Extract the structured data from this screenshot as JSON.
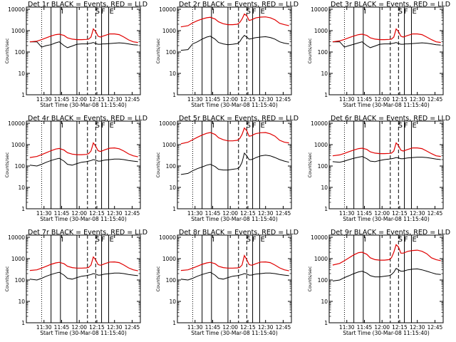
{
  "xlabel": "Start Time (30-Mar-08 11:15:40)",
  "ylabel": "Counts/sec",
  "x_tick_labels": [
    "11:30",
    "11:45",
    "12:00",
    "12:15",
    "12:30",
    "12:45"
  ],
  "y_tick_labels": [
    "10000",
    "1000",
    "100",
    "10",
    "1"
  ],
  "legend_text": "BLACK = Events, RED = LLD",
  "series_colors": {
    "events": "#000000",
    "lld": "#e00000"
  },
  "marker_letters": [
    "I",
    "S",
    "F",
    "E"
  ],
  "chart_data": [
    {
      "type": "line",
      "title": "Det 1r BLACK = Events, RED = LLD",
      "x": [
        "11:18",
        "11:24",
        "11:28",
        "11:32",
        "11:36",
        "11:40",
        "11:43",
        "11:47",
        "11:50",
        "11:54",
        "11:58",
        "12:02",
        "12:06",
        "12:08",
        "12:10",
        "12:12",
        "12:14",
        "12:16",
        "12:18",
        "12:20",
        "12:22",
        "12:26",
        "12:30",
        "12:34",
        "12:38",
        "12:42",
        "12:46",
        "12:50"
      ],
      "series": [
        {
          "name": "Events",
          "values": [
            300,
            300,
            170,
            200,
            220,
            270,
            300,
            200,
            160,
            190,
            230,
            240,
            240,
            250,
            260,
            280,
            250,
            230,
            230,
            240,
            240,
            250,
            260,
            270,
            260,
            240,
            220,
            210
          ]
        },
        {
          "name": "LLD",
          "values": [
            300,
            320,
            380,
            460,
            560,
            650,
            680,
            600,
            460,
            400,
            380,
            380,
            390,
            400,
            500,
            1200,
            900,
            550,
            500,
            550,
            600,
            700,
            700,
            650,
            500,
            370,
            300,
            280
          ]
        }
      ],
      "xlabel": "Start Time (30-Mar-08 11:15:40)",
      "ylabel": "Counts/sec",
      "ylim": [
        1,
        10000
      ]
    },
    {
      "type": "line",
      "title": "Det 2r BLACK = Events, RED = LLD",
      "x": [
        "11:18",
        "11:24",
        "11:28",
        "11:32",
        "11:36",
        "11:40",
        "11:43",
        "11:47",
        "11:50",
        "11:54",
        "11:58",
        "12:02",
        "12:06",
        "12:08",
        "12:10",
        "12:12",
        "12:14",
        "12:16",
        "12:18",
        "12:20",
        "12:22",
        "12:26",
        "12:30",
        "12:34",
        "12:38",
        "12:42",
        "12:46",
        "12:50"
      ],
      "series": [
        {
          "name": "Events",
          "values": [
            120,
            130,
            240,
            300,
            400,
            500,
            550,
            400,
            280,
            240,
            220,
            230,
            250,
            300,
            450,
            600,
            500,
            400,
            420,
            450,
            470,
            500,
            520,
            480,
            400,
            300,
            260,
            240
          ]
        },
        {
          "name": "LLD",
          "values": [
            1500,
            1700,
            2300,
            2900,
            3500,
            4000,
            4200,
            3500,
            2600,
            2100,
            1900,
            1900,
            2000,
            2400,
            3500,
            6000,
            5000,
            3000,
            3200,
            3600,
            4000,
            4300,
            4400,
            4000,
            3200,
            2200,
            1900,
            1700
          ]
        }
      ],
      "xlabel": "Start Time (30-Mar-08 11:15:40)",
      "ylabel": "Counts/sec",
      "ylim": [
        1,
        10000
      ]
    },
    {
      "type": "line",
      "title": "Det 3r BLACK = Events, RED = LLD",
      "x": [
        "11:18",
        "11:24",
        "11:28",
        "11:32",
        "11:36",
        "11:40",
        "11:43",
        "11:47",
        "11:50",
        "11:54",
        "11:58",
        "12:02",
        "12:06",
        "12:08",
        "12:10",
        "12:12",
        "12:14",
        "12:16",
        "12:18",
        "12:20",
        "12:22",
        "12:26",
        "12:30",
        "12:34",
        "12:38",
        "12:42",
        "12:46",
        "12:50"
      ],
      "series": [
        {
          "name": "Events",
          "values": [
            300,
            300,
            170,
            200,
            230,
            270,
            300,
            200,
            160,
            190,
            230,
            240,
            240,
            250,
            260,
            280,
            250,
            230,
            230,
            240,
            240,
            250,
            260,
            270,
            260,
            240,
            220,
            210
          ]
        },
        {
          "name": "LLD",
          "values": [
            300,
            330,
            390,
            470,
            560,
            650,
            680,
            600,
            460,
            400,
            380,
            380,
            390,
            400,
            500,
            1200,
            900,
            550,
            500,
            550,
            600,
            700,
            700,
            650,
            500,
            380,
            300,
            280
          ]
        }
      ],
      "xlabel": "Start Time (30-Mar-08 11:15:40)",
      "ylabel": "Counts/sec",
      "ylim": [
        1,
        10000
      ]
    },
    {
      "type": "line",
      "title": "Det 4r BLACK = Events, RED = LLD",
      "x": [
        "11:18",
        "11:24",
        "11:28",
        "11:32",
        "11:36",
        "11:40",
        "11:43",
        "11:47",
        "11:50",
        "11:54",
        "11:58",
        "12:02",
        "12:06",
        "12:08",
        "12:10",
        "12:12",
        "12:14",
        "12:16",
        "12:18",
        "12:20",
        "12:22",
        "12:26",
        "12:30",
        "12:34",
        "12:38",
        "12:42",
        "12:46",
        "12:50"
      ],
      "series": [
        {
          "name": "Events",
          "values": [
            110,
            100,
            120,
            150,
            180,
            210,
            230,
            170,
            120,
            110,
            130,
            150,
            160,
            170,
            180,
            200,
            190,
            170,
            170,
            180,
            190,
            200,
            210,
            210,
            200,
            180,
            170,
            160
          ]
        },
        {
          "name": "LLD",
          "values": [
            250,
            280,
            340,
            420,
            520,
            620,
            660,
            560,
            420,
            360,
            340,
            340,
            350,
            380,
            500,
            1200,
            850,
            520,
            480,
            520,
            580,
            680,
            700,
            640,
            500,
            370,
            300,
            270
          ]
        }
      ],
      "xlabel": "Start Time (30-Mar-08 11:15:40)",
      "ylabel": "Counts/sec",
      "ylim": [
        1,
        10000
      ]
    },
    {
      "type": "line",
      "title": "Det 5r BLACK = Events, RED = LLD",
      "x": [
        "11:18",
        "11:24",
        "11:28",
        "11:32",
        "11:36",
        "11:40",
        "11:43",
        "11:47",
        "11:50",
        "11:54",
        "11:58",
        "12:02",
        "12:06",
        "12:08",
        "12:10",
        "12:12",
        "12:14",
        "12:16",
        "12:18",
        "12:20",
        "12:22",
        "12:26",
        "12:30",
        "12:34",
        "12:38",
        "12:42",
        "12:46",
        "12:50"
      ],
      "series": [
        {
          "name": "Events",
          "values": [
            40,
            45,
            60,
            75,
            90,
            110,
            120,
            95,
            70,
            65,
            65,
            70,
            75,
            90,
            150,
            400,
            300,
            200,
            200,
            220,
            250,
            300,
            320,
            300,
            250,
            200,
            170,
            150
          ]
        },
        {
          "name": "LLD",
          "values": [
            1100,
            1300,
            1700,
            2200,
            2800,
            3400,
            3700,
            3000,
            2100,
            1700,
            1500,
            1500,
            1600,
            1900,
            3000,
            6000,
            4500,
            2500,
            2600,
            3000,
            3300,
            3600,
            3700,
            3200,
            2500,
            1600,
            1300,
            1200
          ]
        }
      ],
      "xlabel": "Start Time (30-Mar-08 11:15:40)",
      "ylabel": "Counts/sec",
      "ylim": [
        1,
        10000
      ]
    },
    {
      "type": "line",
      "title": "Det 6r BLACK = Events, RED = LLD",
      "x": [
        "11:18",
        "11:24",
        "11:28",
        "11:32",
        "11:36",
        "11:40",
        "11:43",
        "11:47",
        "11:50",
        "11:54",
        "11:58",
        "12:02",
        "12:06",
        "12:08",
        "12:10",
        "12:12",
        "12:14",
        "12:16",
        "12:18",
        "12:20",
        "12:22",
        "12:26",
        "12:30",
        "12:34",
        "12:38",
        "12:42",
        "12:46",
        "12:50"
      ],
      "series": [
        {
          "name": "Events",
          "values": [
            160,
            150,
            170,
            200,
            230,
            260,
            280,
            220,
            170,
            160,
            180,
            200,
            210,
            220,
            230,
            250,
            240,
            220,
            220,
            230,
            240,
            250,
            260,
            260,
            250,
            230,
            210,
            200
          ]
        },
        {
          "name": "LLD",
          "values": [
            300,
            330,
            390,
            470,
            560,
            650,
            680,
            600,
            460,
            400,
            380,
            380,
            390,
            400,
            500,
            1200,
            900,
            550,
            500,
            550,
            600,
            700,
            700,
            650,
            500,
            380,
            300,
            280
          ]
        }
      ],
      "xlabel": "Start Time (30-Mar-08 11:15:40)",
      "ylabel": "Counts/sec",
      "ylim": [
        1,
        10000
      ]
    },
    {
      "type": "line",
      "title": "Det 7r BLACK = Events, RED = LLD",
      "x": [
        "11:18",
        "11:24",
        "11:28",
        "11:32",
        "11:36",
        "11:40",
        "11:43",
        "11:47",
        "11:50",
        "11:54",
        "11:58",
        "12:02",
        "12:06",
        "12:08",
        "12:10",
        "12:12",
        "12:14",
        "12:16",
        "12:18",
        "12:20",
        "12:22",
        "12:26",
        "12:30",
        "12:34",
        "12:38",
        "12:42",
        "12:46",
        "12:50"
      ],
      "series": [
        {
          "name": "Events",
          "values": [
            110,
            100,
            120,
            150,
            180,
            210,
            230,
            170,
            120,
            110,
            130,
            150,
            160,
            170,
            180,
            200,
            190,
            170,
            170,
            180,
            190,
            200,
            210,
            210,
            200,
            180,
            170,
            160
          ]
        },
        {
          "name": "LLD",
          "values": [
            280,
            300,
            360,
            440,
            540,
            630,
            670,
            580,
            440,
            380,
            360,
            360,
            370,
            390,
            500,
            1200,
            880,
            530,
            490,
            530,
            590,
            690,
            700,
            650,
            500,
            370,
            300,
            270
          ]
        }
      ],
      "xlabel": "Start Time (30-Mar-08 11:15:40)",
      "ylabel": "Counts/sec",
      "ylim": [
        1,
        10000
      ]
    },
    {
      "type": "line",
      "title": "Det 8r BLACK = Events, RED = LLD",
      "x": [
        "11:18",
        "11:24",
        "11:28",
        "11:32",
        "11:36",
        "11:40",
        "11:43",
        "11:47",
        "11:50",
        "11:54",
        "11:58",
        "12:02",
        "12:06",
        "12:08",
        "12:10",
        "12:12",
        "12:14",
        "12:16",
        "12:18",
        "12:20",
        "12:22",
        "12:26",
        "12:30",
        "12:34",
        "12:38",
        "12:42",
        "12:46",
        "12:50"
      ],
      "series": [
        {
          "name": "Events",
          "values": [
            110,
            100,
            120,
            150,
            180,
            210,
            230,
            170,
            120,
            110,
            130,
            150,
            160,
            170,
            180,
            200,
            190,
            170,
            170,
            180,
            190,
            200,
            210,
            210,
            200,
            180,
            170,
            160
          ]
        },
        {
          "name": "LLD",
          "values": [
            280,
            300,
            360,
            440,
            540,
            630,
            670,
            580,
            440,
            380,
            360,
            360,
            370,
            390,
            500,
            1400,
            900,
            530,
            490,
            530,
            590,
            690,
            700,
            650,
            500,
            370,
            300,
            270
          ]
        }
      ],
      "xlabel": "Start Time (30-Mar-08 11:15:40)",
      "ylabel": "Counts/sec",
      "ylim": [
        1,
        10000
      ]
    },
    {
      "type": "line",
      "title": "Det 9r BLACK = Events, RED = LLD",
      "x": [
        "11:18",
        "11:24",
        "11:28",
        "11:32",
        "11:36",
        "11:40",
        "11:43",
        "11:47",
        "11:50",
        "11:54",
        "11:58",
        "12:02",
        "12:06",
        "12:08",
        "12:10",
        "12:12",
        "12:14",
        "12:16",
        "12:18",
        "12:20",
        "12:22",
        "12:26",
        "12:30",
        "12:34",
        "12:38",
        "12:42",
        "12:46",
        "12:50"
      ],
      "series": [
        {
          "name": "Events",
          "values": [
            90,
            100,
            130,
            160,
            200,
            240,
            260,
            210,
            160,
            140,
            140,
            150,
            160,
            180,
            230,
            350,
            300,
            260,
            260,
            280,
            300,
            320,
            330,
            300,
            260,
            220,
            190,
            180
          ]
        },
        {
          "name": "LLD",
          "values": [
            500,
            600,
            800,
            1100,
            1500,
            1900,
            2000,
            1600,
            1100,
            900,
            850,
            850,
            900,
            1100,
            2000,
            4500,
            3500,
            1800,
            1800,
            2000,
            2200,
            2400,
            2500,
            2200,
            1700,
            1100,
            900,
            800
          ]
        }
      ],
      "xlabel": "Start Time (30-Mar-08 11:15:40)",
      "ylabel": "Counts/sec",
      "ylim": [
        1,
        10000
      ]
    }
  ]
}
